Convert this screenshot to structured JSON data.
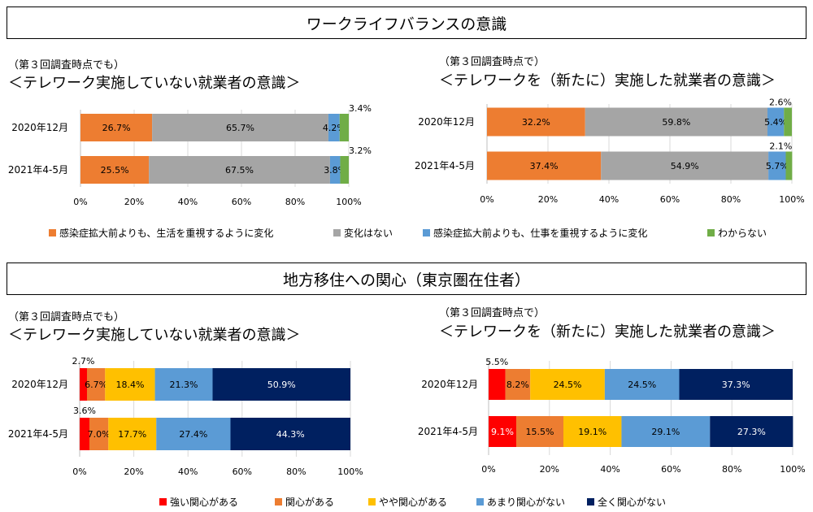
{
  "section1": {
    "title": "ワークライフバランスの意識",
    "left": {
      "sub": "（第３回調査時点でも）",
      "main": "＜テレワーク実施していない就業者の意識＞"
    },
    "right": {
      "sub": "（第３回調査時点で）",
      "main": "＜テレワークを（新たに）実施した就業者の意識＞"
    }
  },
  "section2": {
    "title": "地方移住への関心（東京圏在住者）",
    "left": {
      "sub": "（第３回調査時点でも）",
      "main": "＜テレワーク実施していない就業者の意識＞"
    },
    "right": {
      "sub": "（第３回調査時点で）",
      "main": "＜テレワークを（新たに）実施した就業者の意識＞"
    }
  },
  "legend1": [
    {
      "label": "感染症拡大前よりも、生活を重視するように変化",
      "color": "#ED7D31"
    },
    {
      "label": "変化はない",
      "color": "#A5A5A5"
    },
    {
      "label": "感染症拡大前よりも、仕事を重視するように変化",
      "color": "#5B9BD5"
    },
    {
      "label": "わからない",
      "color": "#70AD47"
    }
  ],
  "legend2": [
    {
      "label": "強い関心がある",
      "color": "#FF0000"
    },
    {
      "label": "関心がある",
      "color": "#ED7D31"
    },
    {
      "label": "やや関心がある",
      "color": "#FFC000"
    },
    {
      "label": "あまり関心がない",
      "color": "#5B9BD5"
    },
    {
      "label": "全く関心がない",
      "color": "#002060"
    }
  ],
  "chart_data": [
    {
      "type": "bar",
      "orientation": "horizontal",
      "stacked": true,
      "categories": [
        "2020年12月",
        "2021年4-5月"
      ],
      "series": [
        {
          "name": "感染症拡大前よりも、生活を重視するように変化",
          "values": [
            26.7,
            25.5
          ],
          "labels": [
            "26.7%",
            "25.5%"
          ],
          "color": "#ED7D31",
          "label_color": "#000000"
        },
        {
          "name": "変化はない",
          "values": [
            65.7,
            67.5
          ],
          "labels": [
            "65.7%",
            "67.5%"
          ],
          "color": "#A5A5A5",
          "label_color": "#000000"
        },
        {
          "name": "感染症拡大前よりも、仕事を重視するように変化",
          "values": [
            4.2,
            3.8
          ],
          "labels": [
            "4.2%",
            "3.8%"
          ],
          "color": "#5B9BD5",
          "label_color": "#000000"
        },
        {
          "name": "わからない",
          "values": [
            3.4,
            3.2
          ],
          "labels": [
            "3.4%",
            "3.2%"
          ],
          "color": "#70AD47",
          "label_color": "#000000",
          "label_outside": true
        }
      ],
      "xlim": [
        0,
        100
      ],
      "xticks": [
        "0%",
        "20%",
        "40%",
        "60%",
        "80%",
        "100%"
      ]
    },
    {
      "type": "bar",
      "orientation": "horizontal",
      "stacked": true,
      "categories": [
        "2020年12月",
        "2021年4-5月"
      ],
      "series": [
        {
          "name": "感染症拡大前よりも、生活を重視するように変化",
          "values": [
            32.2,
            37.4
          ],
          "labels": [
            "32.2%",
            "37.4%"
          ],
          "color": "#ED7D31",
          "label_color": "#000000"
        },
        {
          "name": "変化はない",
          "values": [
            59.8,
            54.9
          ],
          "labels": [
            "59.8%",
            "54.9%"
          ],
          "color": "#A5A5A5",
          "label_color": "#000000"
        },
        {
          "name": "感染症拡大前よりも、仕事を重視するように変化",
          "values": [
            5.4,
            5.7
          ],
          "labels": [
            "5.4%",
            "5.7%"
          ],
          "color": "#5B9BD5",
          "label_color": "#000000"
        },
        {
          "name": "わからない",
          "values": [
            2.6,
            2.1
          ],
          "labels": [
            "2.6%",
            "2.1%"
          ],
          "color": "#70AD47",
          "label_color": "#000000",
          "label_outside": true
        }
      ],
      "xlim": [
        0,
        100
      ],
      "xticks": [
        "0%",
        "20%",
        "40%",
        "60%",
        "80%",
        "100%"
      ]
    },
    {
      "type": "bar",
      "orientation": "horizontal",
      "stacked": true,
      "categories": [
        "2020年12月",
        "2021年4-5月"
      ],
      "series": [
        {
          "name": "強い関心がある",
          "values": [
            2.7,
            3.6
          ],
          "labels": [
            "2.7%",
            "3.6%"
          ],
          "color": "#FF0000",
          "label_color": "#000000",
          "label_outside": true
        },
        {
          "name": "関心がある",
          "values": [
            6.7,
            7.0
          ],
          "labels": [
            "6.7%",
            "7.0%"
          ],
          "color": "#ED7D31",
          "label_color": "#000000"
        },
        {
          "name": "やや関心がある",
          "values": [
            18.4,
            17.7
          ],
          "labels": [
            "18.4%",
            "17.7%"
          ],
          "color": "#FFC000",
          "label_color": "#000000"
        },
        {
          "name": "あまり関心がない",
          "values": [
            21.3,
            27.4
          ],
          "labels": [
            "21.3%",
            "27.4%"
          ],
          "color": "#5B9BD5",
          "label_color": "#000000"
        },
        {
          "name": "全く関心がない",
          "values": [
            50.9,
            44.3
          ],
          "labels": [
            "50.9%",
            "44.3%"
          ],
          "color": "#002060",
          "label_color": "#ffffff"
        }
      ],
      "xlim": [
        0,
        100
      ],
      "xticks": [
        "0%",
        "20%",
        "40%",
        "60%",
        "80%",
        "100%"
      ]
    },
    {
      "type": "bar",
      "orientation": "horizontal",
      "stacked": true,
      "categories": [
        "2020年12月",
        "2021年4-5月"
      ],
      "series": [
        {
          "name": "強い関心がある",
          "values": [
            5.5,
            9.1
          ],
          "labels": [
            "5.5%",
            "9.1%"
          ],
          "color": "#FF0000",
          "label_color": "#ffffff",
          "outside_for": [
            0
          ]
        },
        {
          "name": "関心がある",
          "values": [
            8.2,
            15.5
          ],
          "labels": [
            "8.2%",
            "15.5%"
          ],
          "color": "#ED7D31",
          "label_color": "#000000"
        },
        {
          "name": "やや関心がある",
          "values": [
            24.5,
            19.1
          ],
          "labels": [
            "24.5%",
            "19.1%"
          ],
          "color": "#FFC000",
          "label_color": "#000000"
        },
        {
          "name": "あまり関心がない",
          "values": [
            24.5,
            29.1
          ],
          "labels": [
            "24.5%",
            "29.1%"
          ],
          "color": "#5B9BD5",
          "label_color": "#000000"
        },
        {
          "name": "全く関心がない",
          "values": [
            37.3,
            27.3
          ],
          "labels": [
            "37.3%",
            "27.3%"
          ],
          "color": "#002060",
          "label_color": "#ffffff"
        }
      ],
      "xlim": [
        0,
        100
      ],
      "xticks": [
        "0%",
        "20%",
        "40%",
        "60%",
        "80%",
        "100%"
      ]
    }
  ]
}
